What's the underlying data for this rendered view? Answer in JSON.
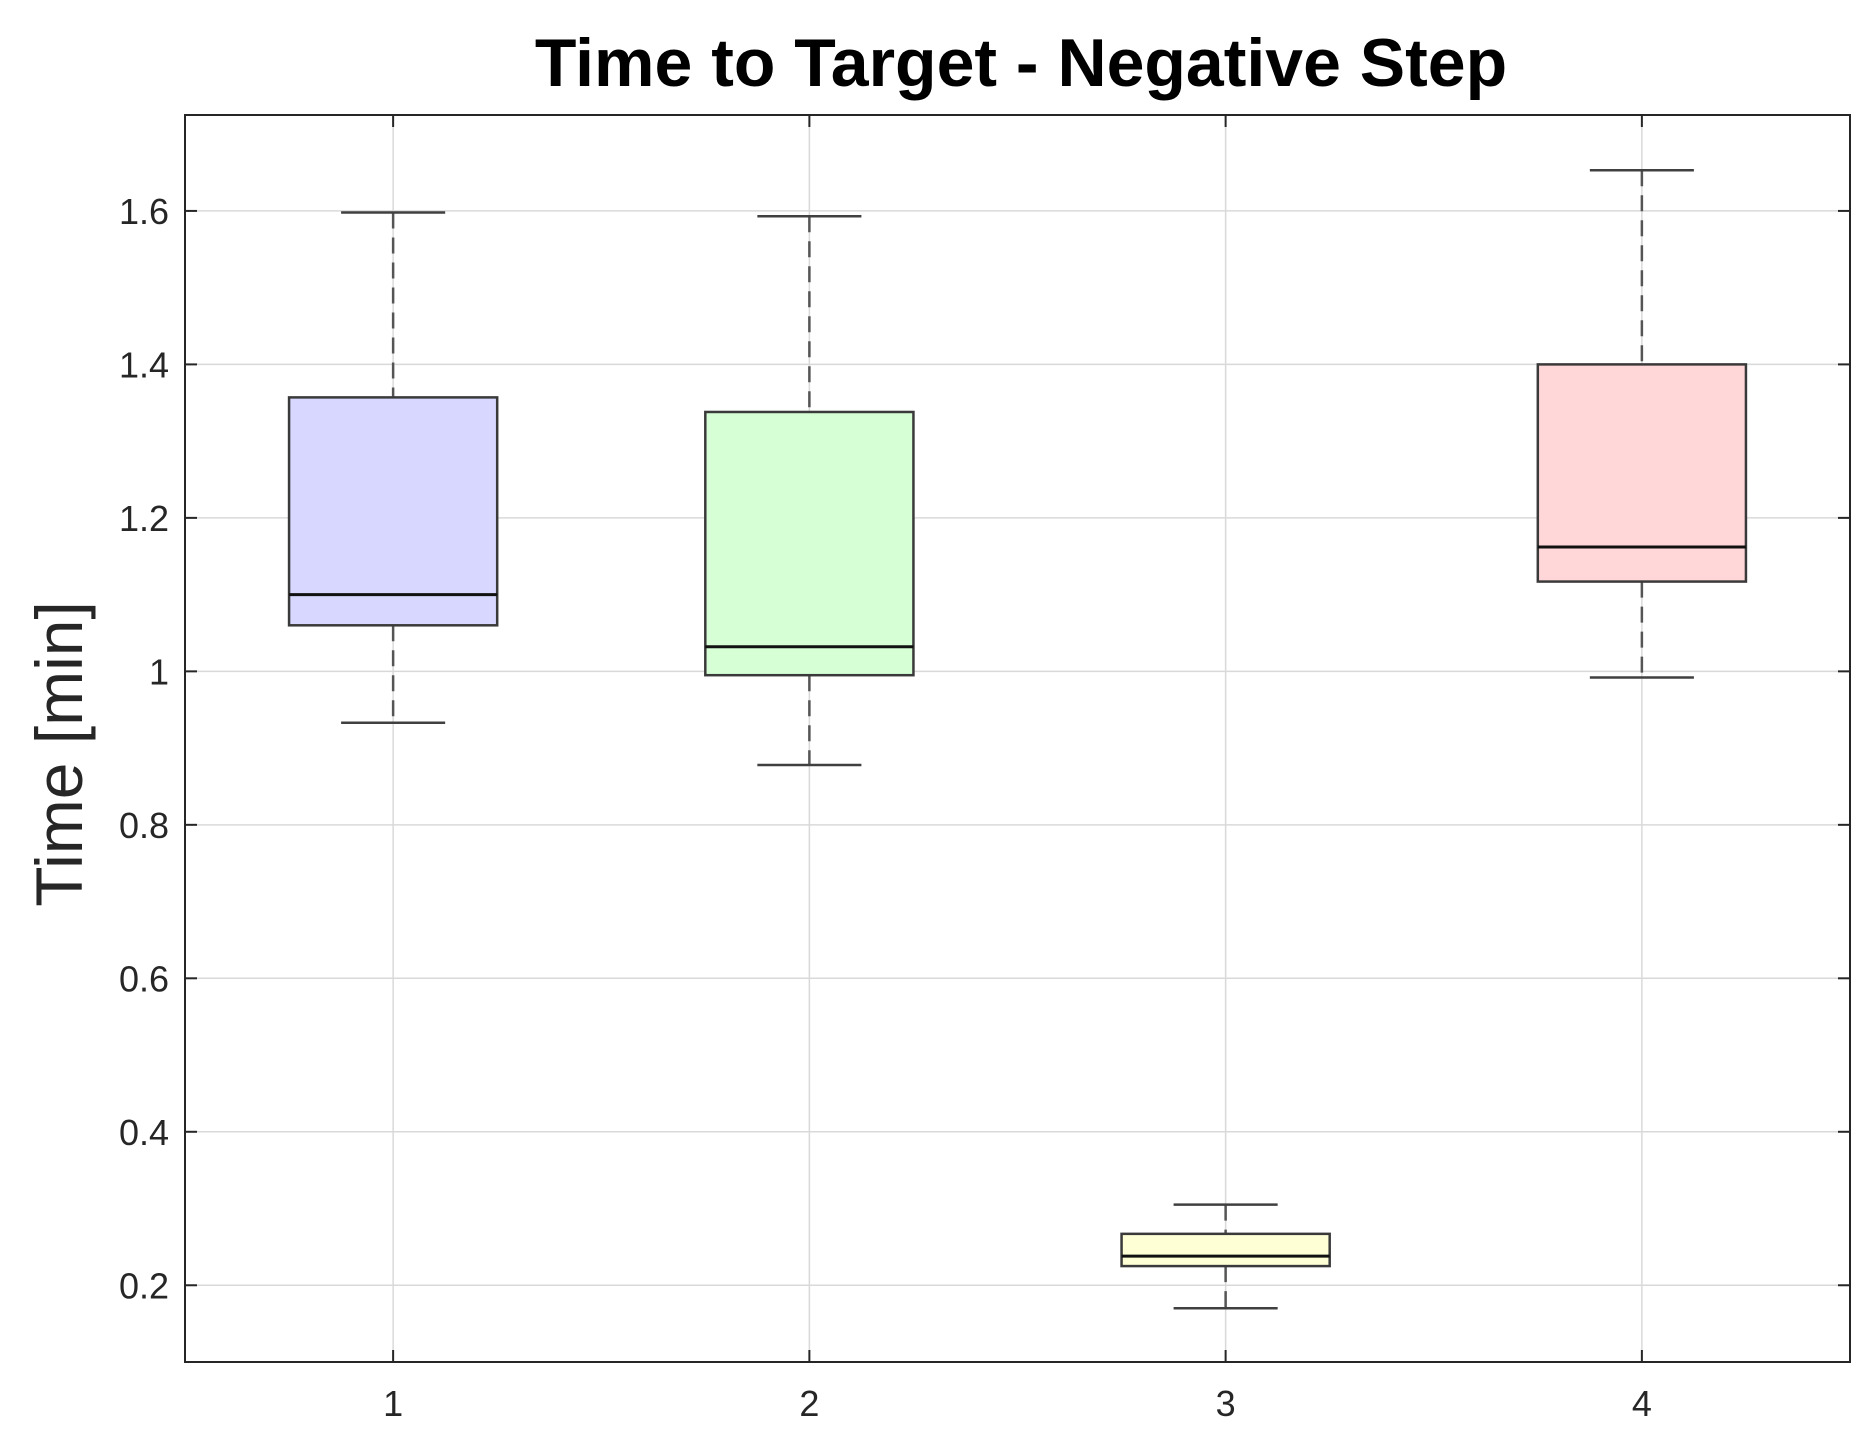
{
  "chart_data": {
    "type": "box",
    "title": "Time to Target - Negative Step",
    "xlabel": "",
    "ylabel": "Time [min]",
    "ylim": [
      0.1,
      1.725
    ],
    "xlim": [
      0.5,
      4.5
    ],
    "grid": true,
    "legend": "none",
    "categories": [
      "1",
      "2",
      "3",
      "4"
    ],
    "y_ticks": [
      0.2,
      0.4,
      0.6,
      0.8,
      1,
      1.2,
      1.4,
      1.6
    ],
    "y_tick_labels": [
      "0.2",
      "0.4",
      "0.6",
      "0.8",
      "1",
      "1.2",
      "1.4",
      "1.6"
    ],
    "boxes": [
      {
        "category": "1",
        "whisker_low": 0.933,
        "q1": 1.06,
        "median": 1.1,
        "q3": 1.357,
        "whisker_high": 1.598,
        "color": "#d7d7ff"
      },
      {
        "category": "2",
        "whisker_low": 0.878,
        "q1": 0.995,
        "median": 1.032,
        "q3": 1.338,
        "whisker_high": 1.593,
        "color": "#d6ffd6"
      },
      {
        "category": "3",
        "whisker_low": 0.17,
        "q1": 0.225,
        "median": 0.238,
        "q3": 0.267,
        "whisker_high": 0.305,
        "color": "#ffffd6"
      },
      {
        "category": "4",
        "whisker_low": 0.992,
        "q1": 1.117,
        "median": 1.162,
        "q3": 1.4,
        "whisker_high": 1.653,
        "color": "#ffd7d9"
      }
    ]
  }
}
